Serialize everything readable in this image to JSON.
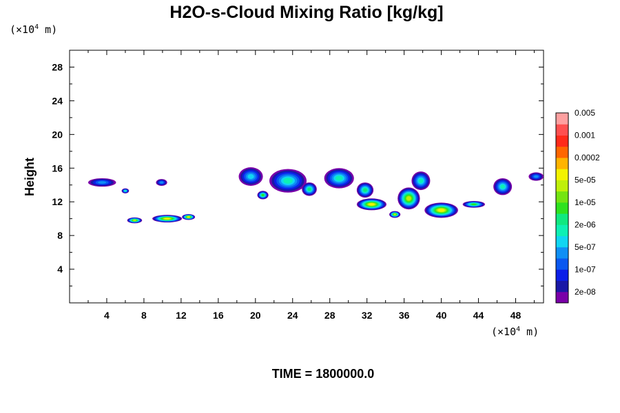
{
  "chart_data": {
    "type": "heatmap",
    "title": "H2O-s-Cloud Mixing Ratio [kg/kg]",
    "ylabel": "Height",
    "unit_prefix": "(×10",
    "unit_exponent": "4",
    "unit_suffix": " m)",
    "time_label": "TIME = 1800000.0",
    "xlim": [
      0,
      51
    ],
    "ylim": [
      0,
      30
    ],
    "x_ticks": [
      4,
      8,
      12,
      16,
      20,
      24,
      28,
      32,
      36,
      40,
      44,
      48
    ],
    "y_ticks": [
      4,
      8,
      12,
      16,
      20,
      24,
      28
    ],
    "colorbar": {
      "colors": [
        "#7a00a8",
        "#1a18a6",
        "#0c1fe8",
        "#0a58f0",
        "#0f8ff5",
        "#10d6f2",
        "#0ef0b4",
        "#10e880",
        "#2ee21e",
        "#74e412",
        "#bff00a",
        "#f3f300",
        "#ffb400",
        "#ff6600",
        "#ff2a1a",
        "#ff5050",
        "#ffa0a0"
      ],
      "labels": [
        "2e-08",
        "1e-07",
        "5e-07",
        "2e-06",
        "1e-05",
        "5e-05",
        "0.0002",
        "0.001",
        "0.005"
      ]
    },
    "cloud_regions": [
      {
        "x": 3.5,
        "y": 14.3,
        "rx": 1.5,
        "ry": 0.5,
        "level": 4
      },
      {
        "x": 6.0,
        "y": 13.3,
        "rx": 0.4,
        "ry": 0.3,
        "level": 6
      },
      {
        "x": 9.9,
        "y": 14.3,
        "rx": 0.6,
        "ry": 0.4,
        "level": 4
      },
      {
        "x": 7.0,
        "y": 9.8,
        "rx": 0.8,
        "ry": 0.35,
        "level": 10
      },
      {
        "x": 10.5,
        "y": 10.0,
        "rx": 1.6,
        "ry": 0.45,
        "level": 11
      },
      {
        "x": 12.8,
        "y": 10.2,
        "rx": 0.7,
        "ry": 0.35,
        "level": 11
      },
      {
        "x": 19.5,
        "y": 15.0,
        "rx": 1.3,
        "ry": 1.1,
        "level": 5
      },
      {
        "x": 20.8,
        "y": 12.8,
        "rx": 0.6,
        "ry": 0.5,
        "level": 8
      },
      {
        "x": 23.5,
        "y": 14.5,
        "rx": 2.0,
        "ry": 1.4,
        "level": 6
      },
      {
        "x": 25.8,
        "y": 13.5,
        "rx": 0.8,
        "ry": 0.8,
        "level": 7
      },
      {
        "x": 29.0,
        "y": 14.8,
        "rx": 1.6,
        "ry": 1.2,
        "level": 6
      },
      {
        "x": 31.8,
        "y": 13.4,
        "rx": 0.9,
        "ry": 0.9,
        "level": 7
      },
      {
        "x": 32.5,
        "y": 11.7,
        "rx": 1.6,
        "ry": 0.7,
        "level": 11
      },
      {
        "x": 35.0,
        "y": 10.5,
        "rx": 0.6,
        "ry": 0.4,
        "level": 10
      },
      {
        "x": 36.5,
        "y": 12.4,
        "rx": 1.2,
        "ry": 1.3,
        "level": 10
      },
      {
        "x": 37.8,
        "y": 14.5,
        "rx": 1.0,
        "ry": 1.1,
        "level": 6
      },
      {
        "x": 40.0,
        "y": 11.0,
        "rx": 1.8,
        "ry": 0.9,
        "level": 11
      },
      {
        "x": 43.5,
        "y": 11.7,
        "rx": 1.2,
        "ry": 0.4,
        "level": 8
      },
      {
        "x": 46.6,
        "y": 13.8,
        "rx": 1.0,
        "ry": 1.0,
        "level": 6
      },
      {
        "x": 50.2,
        "y": 15.0,
        "rx": 0.8,
        "ry": 0.5,
        "level": 4
      }
    ]
  }
}
